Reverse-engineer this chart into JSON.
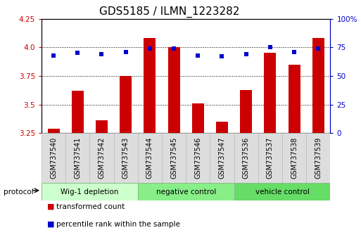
{
  "title": "GDS5185 / ILMN_1223282",
  "samples": [
    "GSM737540",
    "GSM737541",
    "GSM737542",
    "GSM737543",
    "GSM737544",
    "GSM737545",
    "GSM737546",
    "GSM737547",
    "GSM737536",
    "GSM737537",
    "GSM737538",
    "GSM737539"
  ],
  "red_values": [
    3.29,
    3.62,
    3.36,
    3.75,
    4.08,
    4.0,
    3.51,
    3.35,
    3.63,
    3.95,
    3.85,
    4.08
  ],
  "blue_values": [
    68,
    70,
    69,
    71,
    74,
    74,
    68,
    67,
    69,
    75,
    71,
    74
  ],
  "groups": [
    {
      "label": "Wig-1 depletion",
      "start": 0,
      "end": 3,
      "color": "#ccffcc"
    },
    {
      "label": "negative control",
      "start": 4,
      "end": 7,
      "color": "#88ee88"
    },
    {
      "label": "vehicle control",
      "start": 8,
      "end": 11,
      "color": "#66dd66"
    }
  ],
  "ylim_left": [
    3.25,
    4.25
  ],
  "ylim_right": [
    0,
    100
  ],
  "right_ticks": [
    0,
    25,
    50,
    75,
    100
  ],
  "right_tick_labels": [
    "0",
    "25",
    "50",
    "75",
    "100%"
  ],
  "left_ticks": [
    3.25,
    3.5,
    3.75,
    4.0,
    4.25
  ],
  "bar_color": "#cc0000",
  "dot_color": "#0000cc",
  "bar_width": 0.5,
  "bg_color": "#ffffff",
  "plot_bg": "#ffffff",
  "grid_color": "#000000",
  "title_fontsize": 11,
  "tick_label_fontsize": 7.5,
  "sample_label_fontsize": 7,
  "legend_red_label": "transformed count",
  "legend_blue_label": "percentile rank within the sample",
  "protocol_label": "protocol",
  "xtick_bg": "#dddddd"
}
